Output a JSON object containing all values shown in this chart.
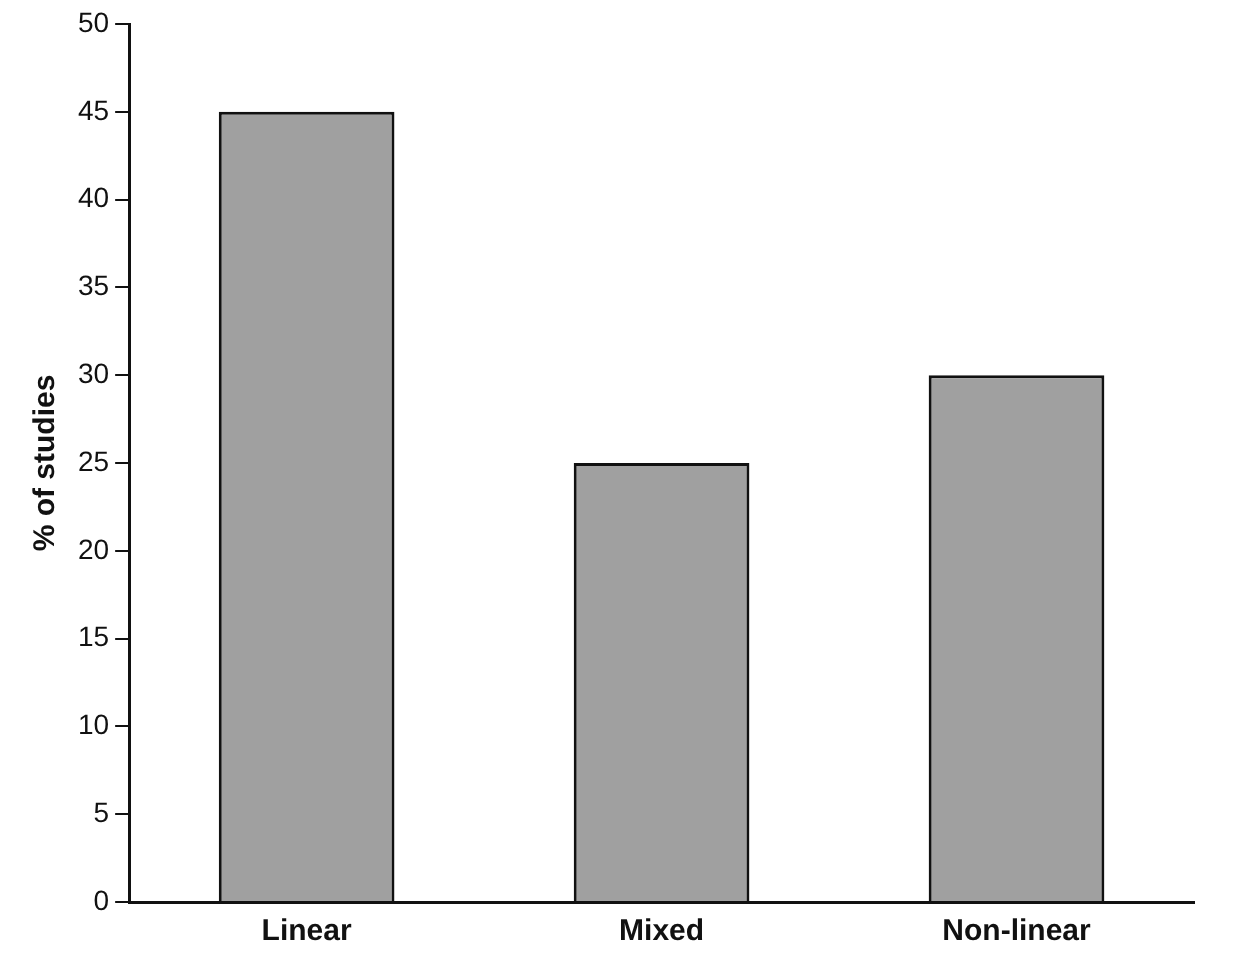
{
  "chart_data": {
    "type": "bar",
    "ylabel": "% of studies",
    "categories": [
      "Linear",
      "Mixed",
      "Non-linear"
    ],
    "values": [
      45,
      25,
      30
    ],
    "color": "#a0a0a0",
    "ylim": [
      0,
      50
    ],
    "yticks": [
      0,
      5,
      10,
      15,
      20,
      25,
      30,
      35,
      40,
      45,
      50
    ],
    "grid": false,
    "legend": false
  }
}
